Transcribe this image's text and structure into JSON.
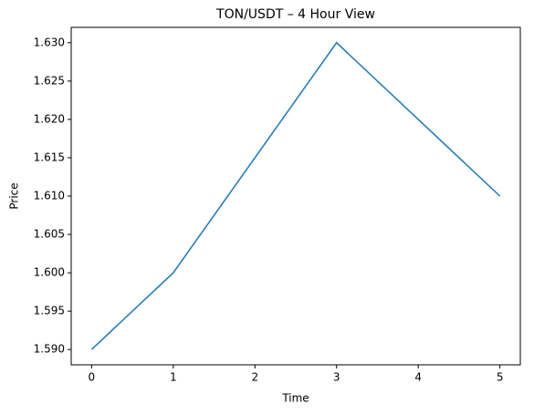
{
  "chart_data": {
    "type": "line",
    "title": "TON/USDT – 4 Hour View",
    "x_label": "Time",
    "y_label": "Price",
    "x": [
      0,
      1,
      2,
      3,
      4,
      5
    ],
    "series": [
      {
        "color": "#1f77b4",
        "values": [
          1.59,
          1.6,
          1.615,
          1.63,
          1.62,
          1.61
        ]
      }
    ],
    "xlim": [
      -0.25,
      5.25
    ],
    "xticks": [
      0,
      1,
      2,
      3,
      4,
      5
    ],
    "ylim": [
      1.588,
      1.632
    ],
    "yticks": [
      {
        "value": 1.59,
        "label": "1.590"
      },
      {
        "value": 1.595,
        "label": "1.595"
      },
      {
        "value": 1.6,
        "label": "1.600"
      },
      {
        "value": 1.605,
        "label": "1.605"
      },
      {
        "value": 1.61,
        "label": "1.610"
      },
      {
        "value": 1.615,
        "label": "1.615"
      },
      {
        "value": 1.62,
        "label": "1.620"
      },
      {
        "value": 1.625,
        "label": "1.625"
      },
      {
        "value": 1.63,
        "label": "1.630"
      }
    ],
    "grid": false
  }
}
